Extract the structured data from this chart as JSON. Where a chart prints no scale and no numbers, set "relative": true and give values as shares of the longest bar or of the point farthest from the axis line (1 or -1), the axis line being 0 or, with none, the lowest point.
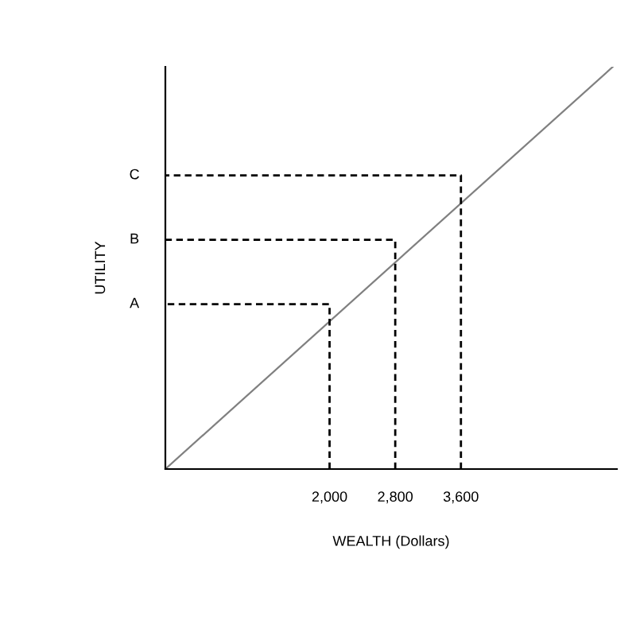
{
  "chart_data": {
    "type": "line",
    "xlabel": "WEALTH (Dollars)",
    "ylabel": "UTILITY",
    "relative": true,
    "xlim": [
      0,
      5500
    ],
    "xticks": [
      {
        "value": 2000,
        "label": "2,000"
      },
      {
        "value": 2800,
        "label": "2,800"
      },
      {
        "value": 3600,
        "label": "3,600"
      }
    ],
    "series": [
      {
        "color": "#808080",
        "line_style": "solid",
        "x": [
          0,
          5450
        ],
        "values": [
          0,
          1
        ]
      },
      {
        "name": "A",
        "color": "#000000",
        "line_style": "dashed",
        "x": [
          2000,
          2000,
          0
        ],
        "values": [
          0,
          0.41,
          0.41
        ]
      },
      {
        "name": "B",
        "color": "#000000",
        "line_style": "dashed",
        "x": [
          2800,
          2800,
          0
        ],
        "values": [
          0,
          0.57,
          0.57
        ]
      },
      {
        "name": "C",
        "color": "#000000",
        "line_style": "dashed",
        "x": [
          3600,
          3600,
          0
        ],
        "values": [
          0,
          0.73,
          0.73
        ]
      }
    ]
  }
}
